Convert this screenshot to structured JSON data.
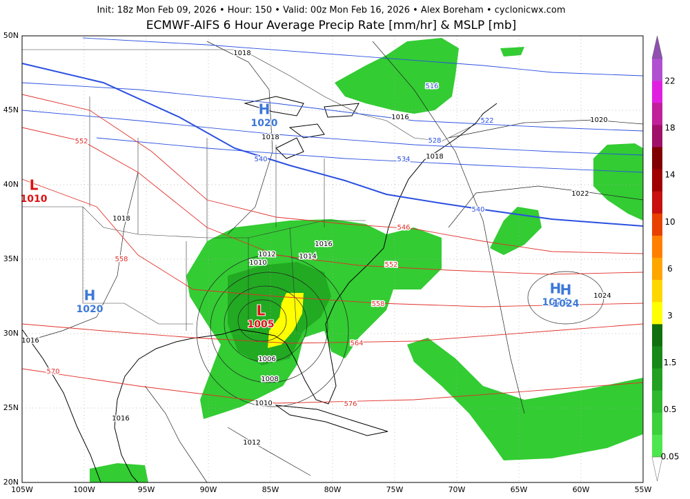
{
  "header": {
    "info": "Init: 18z Mon Feb 09, 2026 • Hour: 150 • Valid: 00z Mon Feb 16, 2026 • Alex Boreham • cyclonicwx.com",
    "title": "ECMWF-AIFS 6 Hour Average Precip Rate [mm/hr] & MSLP [mb]"
  },
  "map": {
    "lat_labels": [
      "50N",
      "45N",
      "40N",
      "35N",
      "30N",
      "25N",
      "20N"
    ],
    "lon_labels": [
      "105W",
      "100W",
      "95W",
      "90W",
      "85W",
      "80W",
      "75W",
      "70W",
      "65W",
      "60W",
      "55W"
    ]
  },
  "colorbar": {
    "labels": [
      22,
      18,
      14,
      10,
      6,
      3,
      1.5,
      0.5,
      0.05
    ]
  },
  "isobar_labels": [
    1018,
    1016,
    1018,
    1018,
    1020,
    1022,
    1018,
    1016,
    1012,
    1014,
    1010,
    1024,
    1016,
    1006,
    1008,
    1010,
    1016,
    1012
  ],
  "thickness_labels": {
    "blue": [
      516,
      522,
      528,
      534,
      540,
      540
    ],
    "red": [
      552,
      546,
      552,
      558,
      558,
      564,
      570,
      576
    ]
  },
  "pressure_centers": [
    {
      "letter": "H",
      "value": 1020
    },
    {
      "letter": "L",
      "value": 1010
    },
    {
      "letter": "H",
      "value": 1020
    },
    {
      "letter": "L",
      "value": 1005
    },
    {
      "letter": "H",
      "value": 1024
    },
    {
      "letter": "H",
      "value": 1024
    }
  ]
}
